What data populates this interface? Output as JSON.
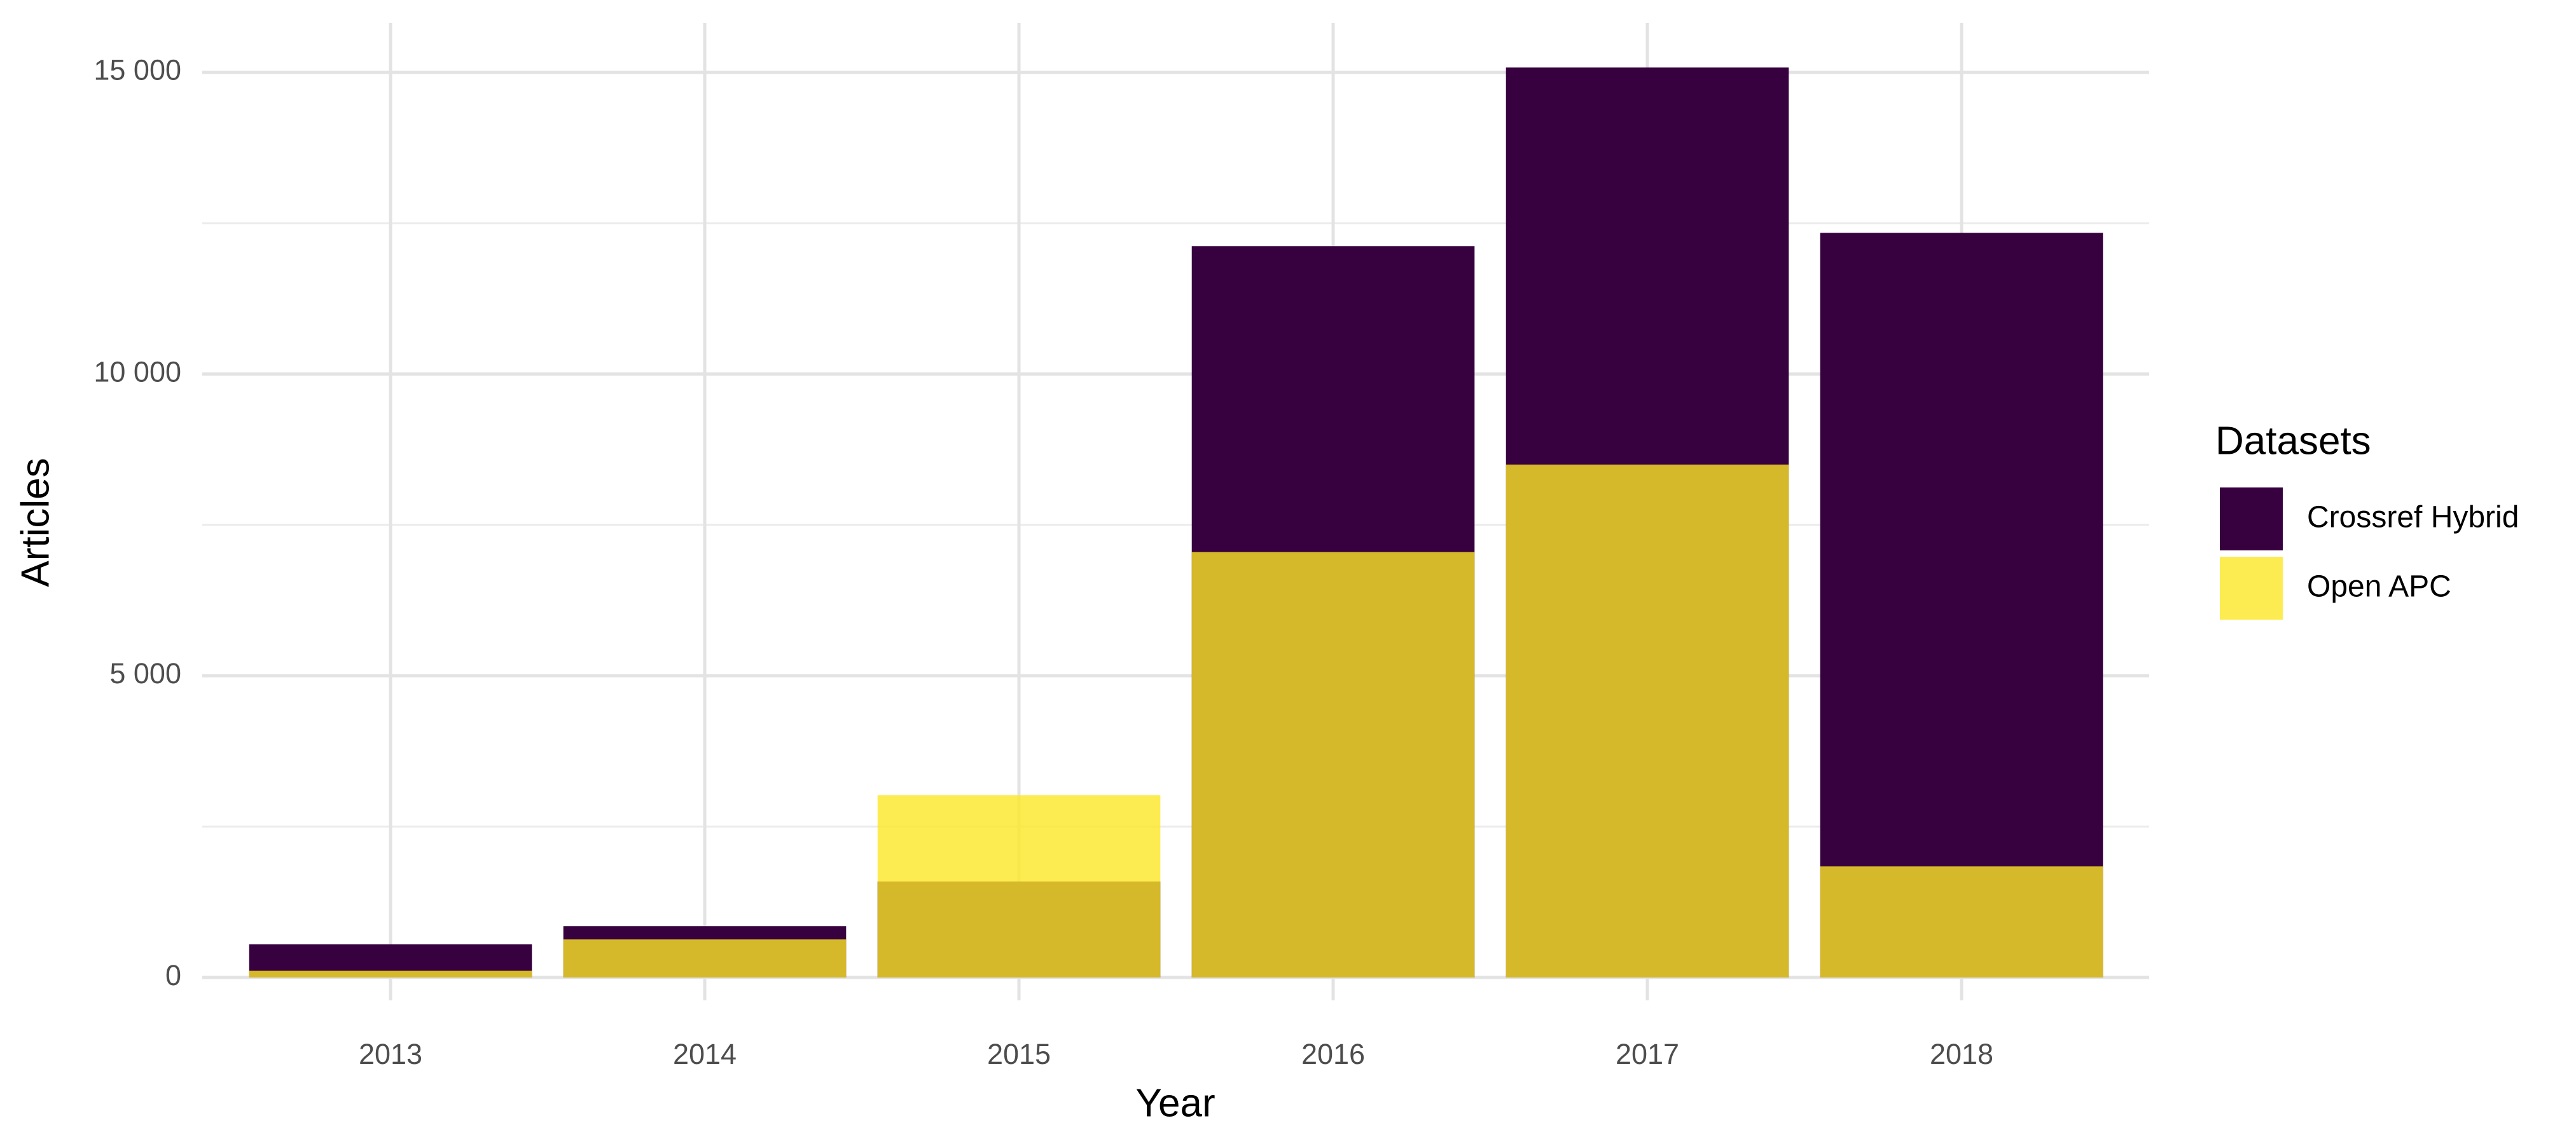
{
  "chart_data": {
    "type": "overlapping_bar",
    "x_label": "Year",
    "y_label": "Articles",
    "categories": [
      "2013",
      "2014",
      "2015",
      "2016",
      "2017",
      "2018"
    ],
    "series": [
      {
        "name": "Crossref Hybrid",
        "color": "#37003f",
        "values": [
          550,
          850,
          1590,
          12120,
          15080,
          12340
        ]
      },
      {
        "name": "Open APC",
        "color": "#fde725",
        "opacity": 0.8,
        "values": [
          110,
          630,
          3020,
          7050,
          8500,
          1840
        ]
      }
    ],
    "ylim": [
      -380,
      15820
    ],
    "yticks": [
      0,
      {
        "value": 5000,
        "label": "5 000"
      },
      {
        "value": 10000,
        "label": "10 000"
      },
      {
        "value": 15000,
        "label": "15 000"
      }
    ],
    "y_minor_gridlines": [
      2500,
      7500,
      12500
    ],
    "grid": true,
    "legend_title": "Datasets",
    "legend_position": "right"
  }
}
